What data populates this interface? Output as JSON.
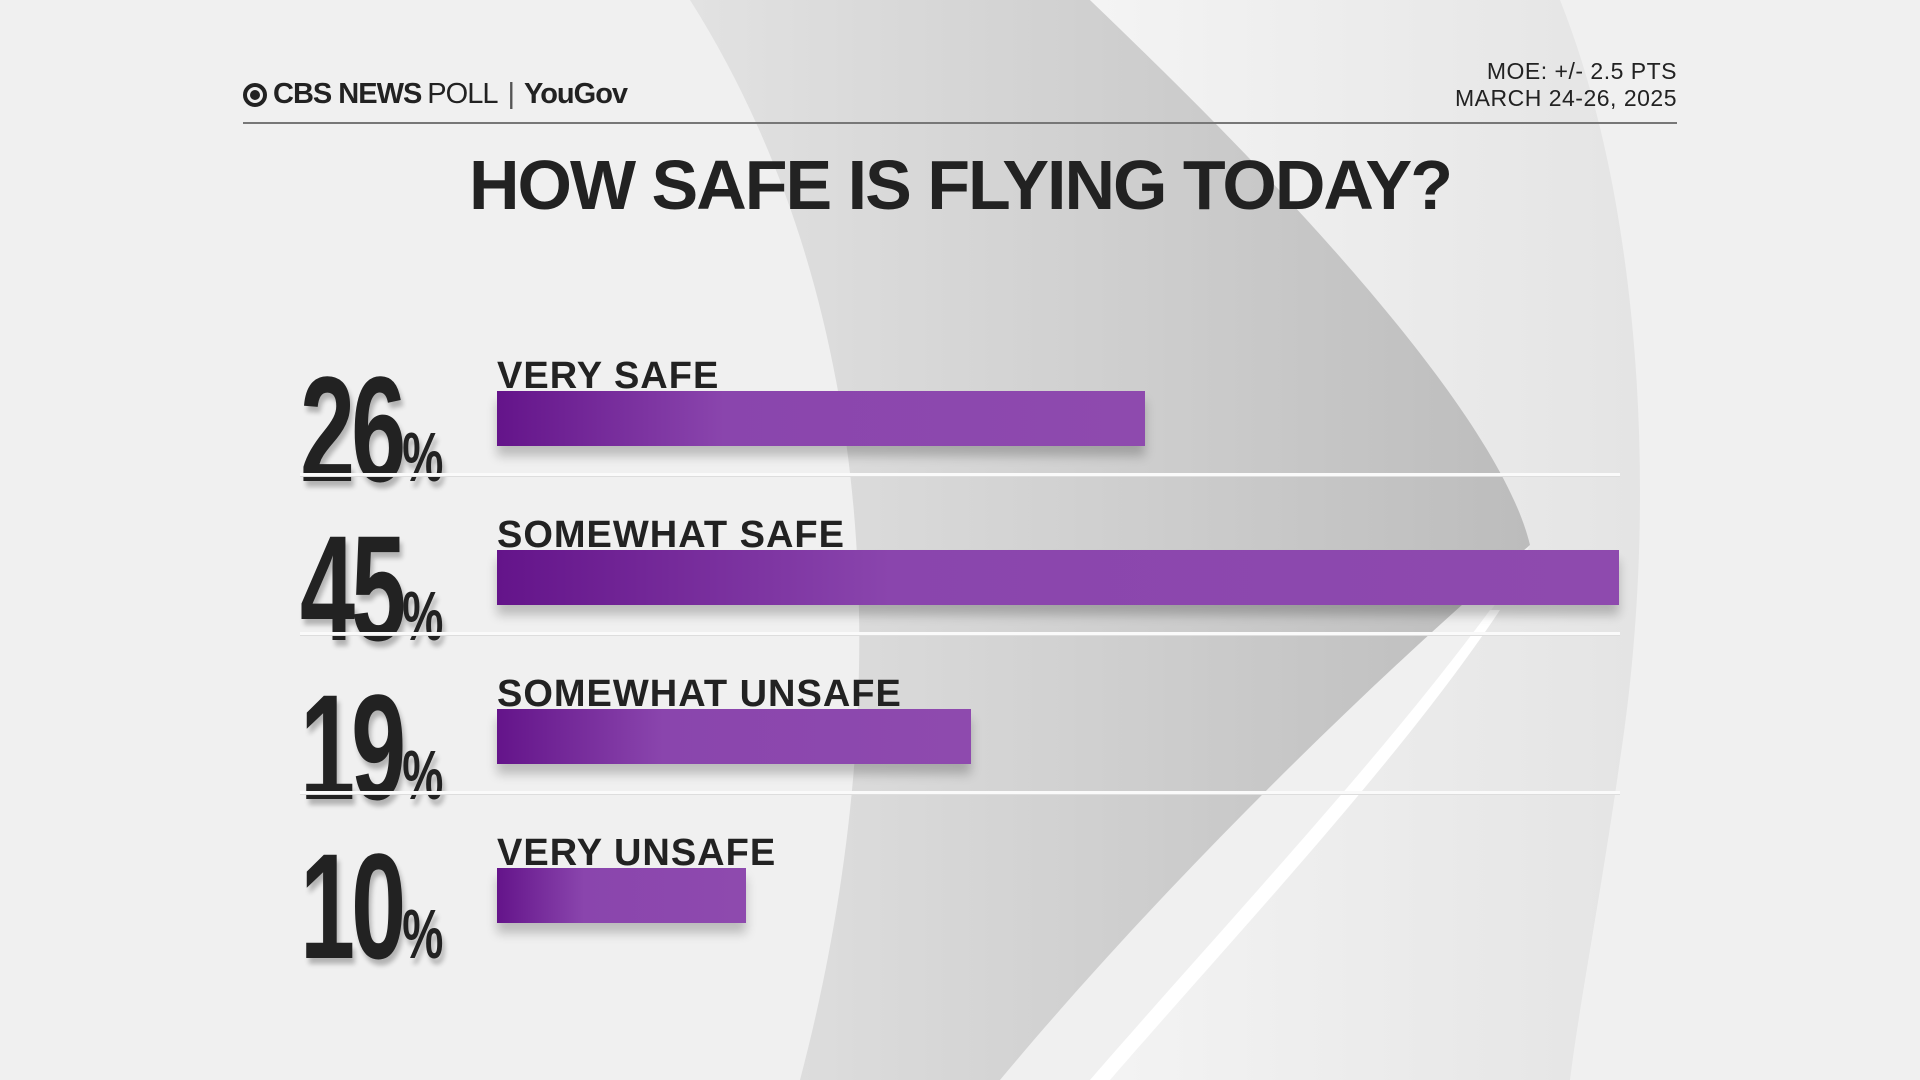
{
  "header": {
    "brand_cbs": "CBS NEWS",
    "brand_poll": "POLL",
    "brand_separator": "|",
    "brand_partner": "YouGov",
    "moe": "MOE: +/- 2.5 PTS",
    "dates": "MARCH 24-26, 2025"
  },
  "chart_data": {
    "type": "bar",
    "orientation": "horizontal",
    "title": "HOW SAFE IS FLYING TODAY?",
    "categories": [
      "VERY SAFE",
      "SOMEWHAT SAFE",
      "SOMEWHAT UNSAFE",
      "VERY UNSAFE"
    ],
    "values": [
      26,
      45,
      19,
      10
    ],
    "value_labels": [
      "26",
      "45",
      "19",
      "10"
    ],
    "unit": "%",
    "bar_color": "#8a45ad"
  }
}
